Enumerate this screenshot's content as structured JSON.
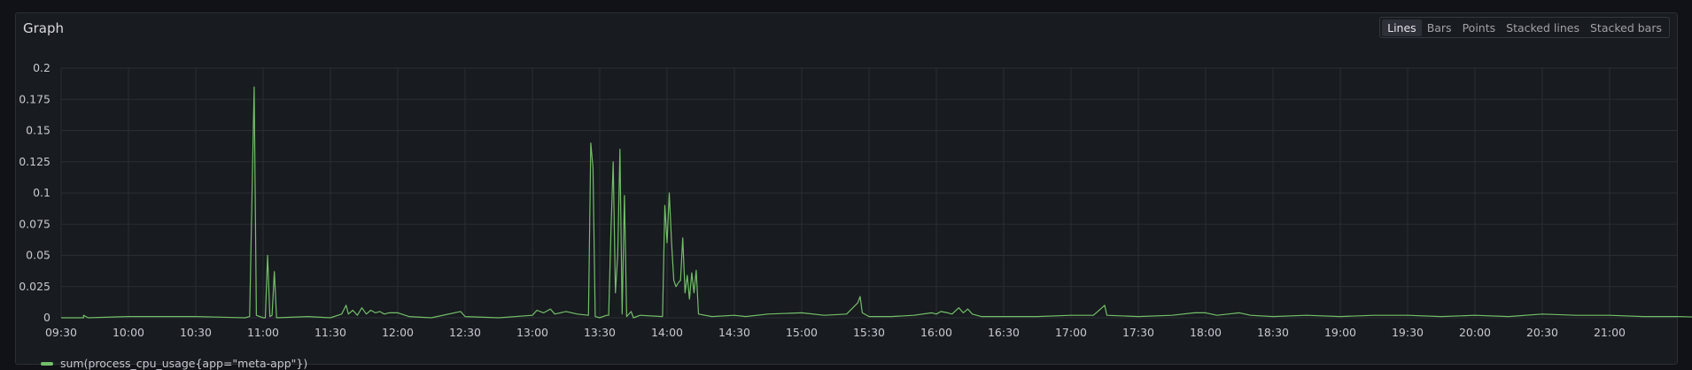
{
  "panel": {
    "title": "Graph",
    "viz_options": [
      "Lines",
      "Bars",
      "Points",
      "Stacked lines",
      "Stacked bars"
    ],
    "active_viz": "Lines"
  },
  "colors": {
    "series": "#73bf69",
    "grid": "#2a2d33",
    "background": "#181b1f"
  },
  "chart_data": {
    "type": "line",
    "title": "",
    "xlabel": "",
    "ylabel": "",
    "y_ticks": [
      "0",
      "0.025",
      "0.05",
      "0.075",
      "0.1",
      "0.125",
      "0.15",
      "0.175",
      "0.2"
    ],
    "x_ticks": [
      "09:30",
      "10:00",
      "10:30",
      "11:00",
      "11:30",
      "12:00",
      "12:30",
      "13:00",
      "13:30",
      "14:00",
      "14:30",
      "15:00",
      "15:30",
      "16:00",
      "16:30",
      "17:00",
      "17:30",
      "18:00",
      "18:30",
      "19:00",
      "19:30",
      "20:00",
      "20:30",
      "21:00"
    ],
    "ylim": [
      0,
      0.2
    ],
    "xlim": [
      "09:30",
      "21:50"
    ],
    "grid": true,
    "legend_placement": "bottom-left",
    "series": [
      {
        "name": "sum(process_cpu_usage{app=\"meta-app\"})",
        "points": [
          [
            "09:30",
            0
          ],
          [
            "09:35",
            0
          ],
          [
            "09:40",
            0
          ],
          [
            "09:40",
            0.002
          ],
          [
            "09:42",
            0
          ],
          [
            "10:00",
            0.001
          ],
          [
            "10:30",
            0.001
          ],
          [
            "10:52",
            0
          ],
          [
            "10:54",
            0.001
          ],
          [
            "10:56",
            0.185
          ],
          [
            "10:57",
            0.002
          ],
          [
            "11:00",
            0
          ],
          [
            "11:01",
            0
          ],
          [
            "11:02",
            0.05
          ],
          [
            "11:03",
            0.001
          ],
          [
            "11:04",
            0.002
          ],
          [
            "11:05",
            0.037
          ],
          [
            "11:06",
            0
          ],
          [
            "11:20",
            0.001
          ],
          [
            "11:30",
            0
          ],
          [
            "11:35",
            0.003
          ],
          [
            "11:37",
            0.01
          ],
          [
            "11:38",
            0.003
          ],
          [
            "11:40",
            0.006
          ],
          [
            "11:42",
            0.002
          ],
          [
            "11:44",
            0.008
          ],
          [
            "11:46",
            0.003
          ],
          [
            "11:48",
            0.006
          ],
          [
            "11:50",
            0.004
          ],
          [
            "11:52",
            0.005
          ],
          [
            "11:54",
            0.003
          ],
          [
            "11:56",
            0.004
          ],
          [
            "12:00",
            0.004
          ],
          [
            "12:05",
            0.001
          ],
          [
            "12:15",
            0
          ],
          [
            "12:28",
            0.005
          ],
          [
            "12:30",
            0.001
          ],
          [
            "12:45",
            0
          ],
          [
            "13:00",
            0.002
          ],
          [
            "13:02",
            0.006
          ],
          [
            "13:05",
            0.004
          ],
          [
            "13:08",
            0.007
          ],
          [
            "13:10",
            0.003
          ],
          [
            "13:15",
            0.005
          ],
          [
            "13:20",
            0.003
          ],
          [
            "13:25",
            0.002
          ],
          [
            "13:26",
            0.14
          ],
          [
            "13:27",
            0.12
          ],
          [
            "13:28",
            0.001
          ],
          [
            "13:30",
            0
          ],
          [
            "13:33",
            0.002
          ],
          [
            "13:34",
            0.002
          ],
          [
            "13:35",
            0.07
          ],
          [
            "13:36",
            0.125
          ],
          [
            "13:37",
            0.02
          ],
          [
            "13:38",
            0.05
          ],
          [
            "13:39",
            0.135
          ],
          [
            "13:40",
            0.003
          ],
          [
            "13:41",
            0.098
          ],
          [
            "13:42",
            0.001
          ],
          [
            "13:44",
            0.005
          ],
          [
            "13:45",
            0
          ],
          [
            "13:48",
            0.002
          ],
          [
            "13:58",
            0.001
          ],
          [
            "13:59",
            0.09
          ],
          [
            "14:00",
            0.06
          ],
          [
            "14:01",
            0.1
          ],
          [
            "14:02",
            0.06
          ],
          [
            "14:03",
            0.03
          ],
          [
            "14:04",
            0.025
          ],
          [
            "14:05",
            0.028
          ],
          [
            "14:06",
            0.03
          ],
          [
            "14:07",
            0.064
          ],
          [
            "14:08",
            0.02
          ],
          [
            "14:09",
            0.034
          ],
          [
            "14:10",
            0.015
          ],
          [
            "14:11",
            0.036
          ],
          [
            "14:12",
            0.02
          ],
          [
            "14:13",
            0.038
          ],
          [
            "14:14",
            0.003
          ],
          [
            "14:20",
            0.001
          ],
          [
            "14:30",
            0.002
          ],
          [
            "14:35",
            0.001
          ],
          [
            "14:45",
            0.003
          ],
          [
            "15:00",
            0.004
          ],
          [
            "15:10",
            0.002
          ],
          [
            "15:20",
            0.003
          ],
          [
            "15:25",
            0.012
          ],
          [
            "15:26",
            0.017
          ],
          [
            "15:27",
            0.004
          ],
          [
            "15:30",
            0.001
          ],
          [
            "15:40",
            0.001
          ],
          [
            "15:50",
            0.002
          ],
          [
            "15:58",
            0.004
          ],
          [
            "16:00",
            0.003
          ],
          [
            "16:02",
            0.005
          ],
          [
            "16:05",
            0.004
          ],
          [
            "16:07",
            0.003
          ],
          [
            "16:10",
            0.008
          ],
          [
            "16:12",
            0.004
          ],
          [
            "16:14",
            0.007
          ],
          [
            "16:16",
            0.003
          ],
          [
            "16:20",
            0.001
          ],
          [
            "16:30",
            0.001
          ],
          [
            "16:45",
            0.001
          ],
          [
            "17:00",
            0.002
          ],
          [
            "17:10",
            0.002
          ],
          [
            "17:15",
            0.01
          ],
          [
            "17:16",
            0.002
          ],
          [
            "17:30",
            0.001
          ],
          [
            "17:45",
            0.002
          ],
          [
            "17:55",
            0.004
          ],
          [
            "18:00",
            0.004
          ],
          [
            "18:05",
            0.002
          ],
          [
            "18:10",
            0.003
          ],
          [
            "18:15",
            0.004
          ],
          [
            "18:20",
            0.002
          ],
          [
            "18:30",
            0.001
          ],
          [
            "18:45",
            0.002
          ],
          [
            "19:00",
            0.001
          ],
          [
            "19:15",
            0.002
          ],
          [
            "19:30",
            0.002
          ],
          [
            "19:45",
            0.001
          ],
          [
            "20:00",
            0.002
          ],
          [
            "20:15",
            0.001
          ],
          [
            "20:30",
            0.003
          ],
          [
            "20:45",
            0.002
          ],
          [
            "21:00",
            0.002
          ],
          [
            "21:15",
            0.001
          ],
          [
            "21:30",
            0.001
          ],
          [
            "21:50",
            0
          ]
        ]
      }
    ]
  }
}
